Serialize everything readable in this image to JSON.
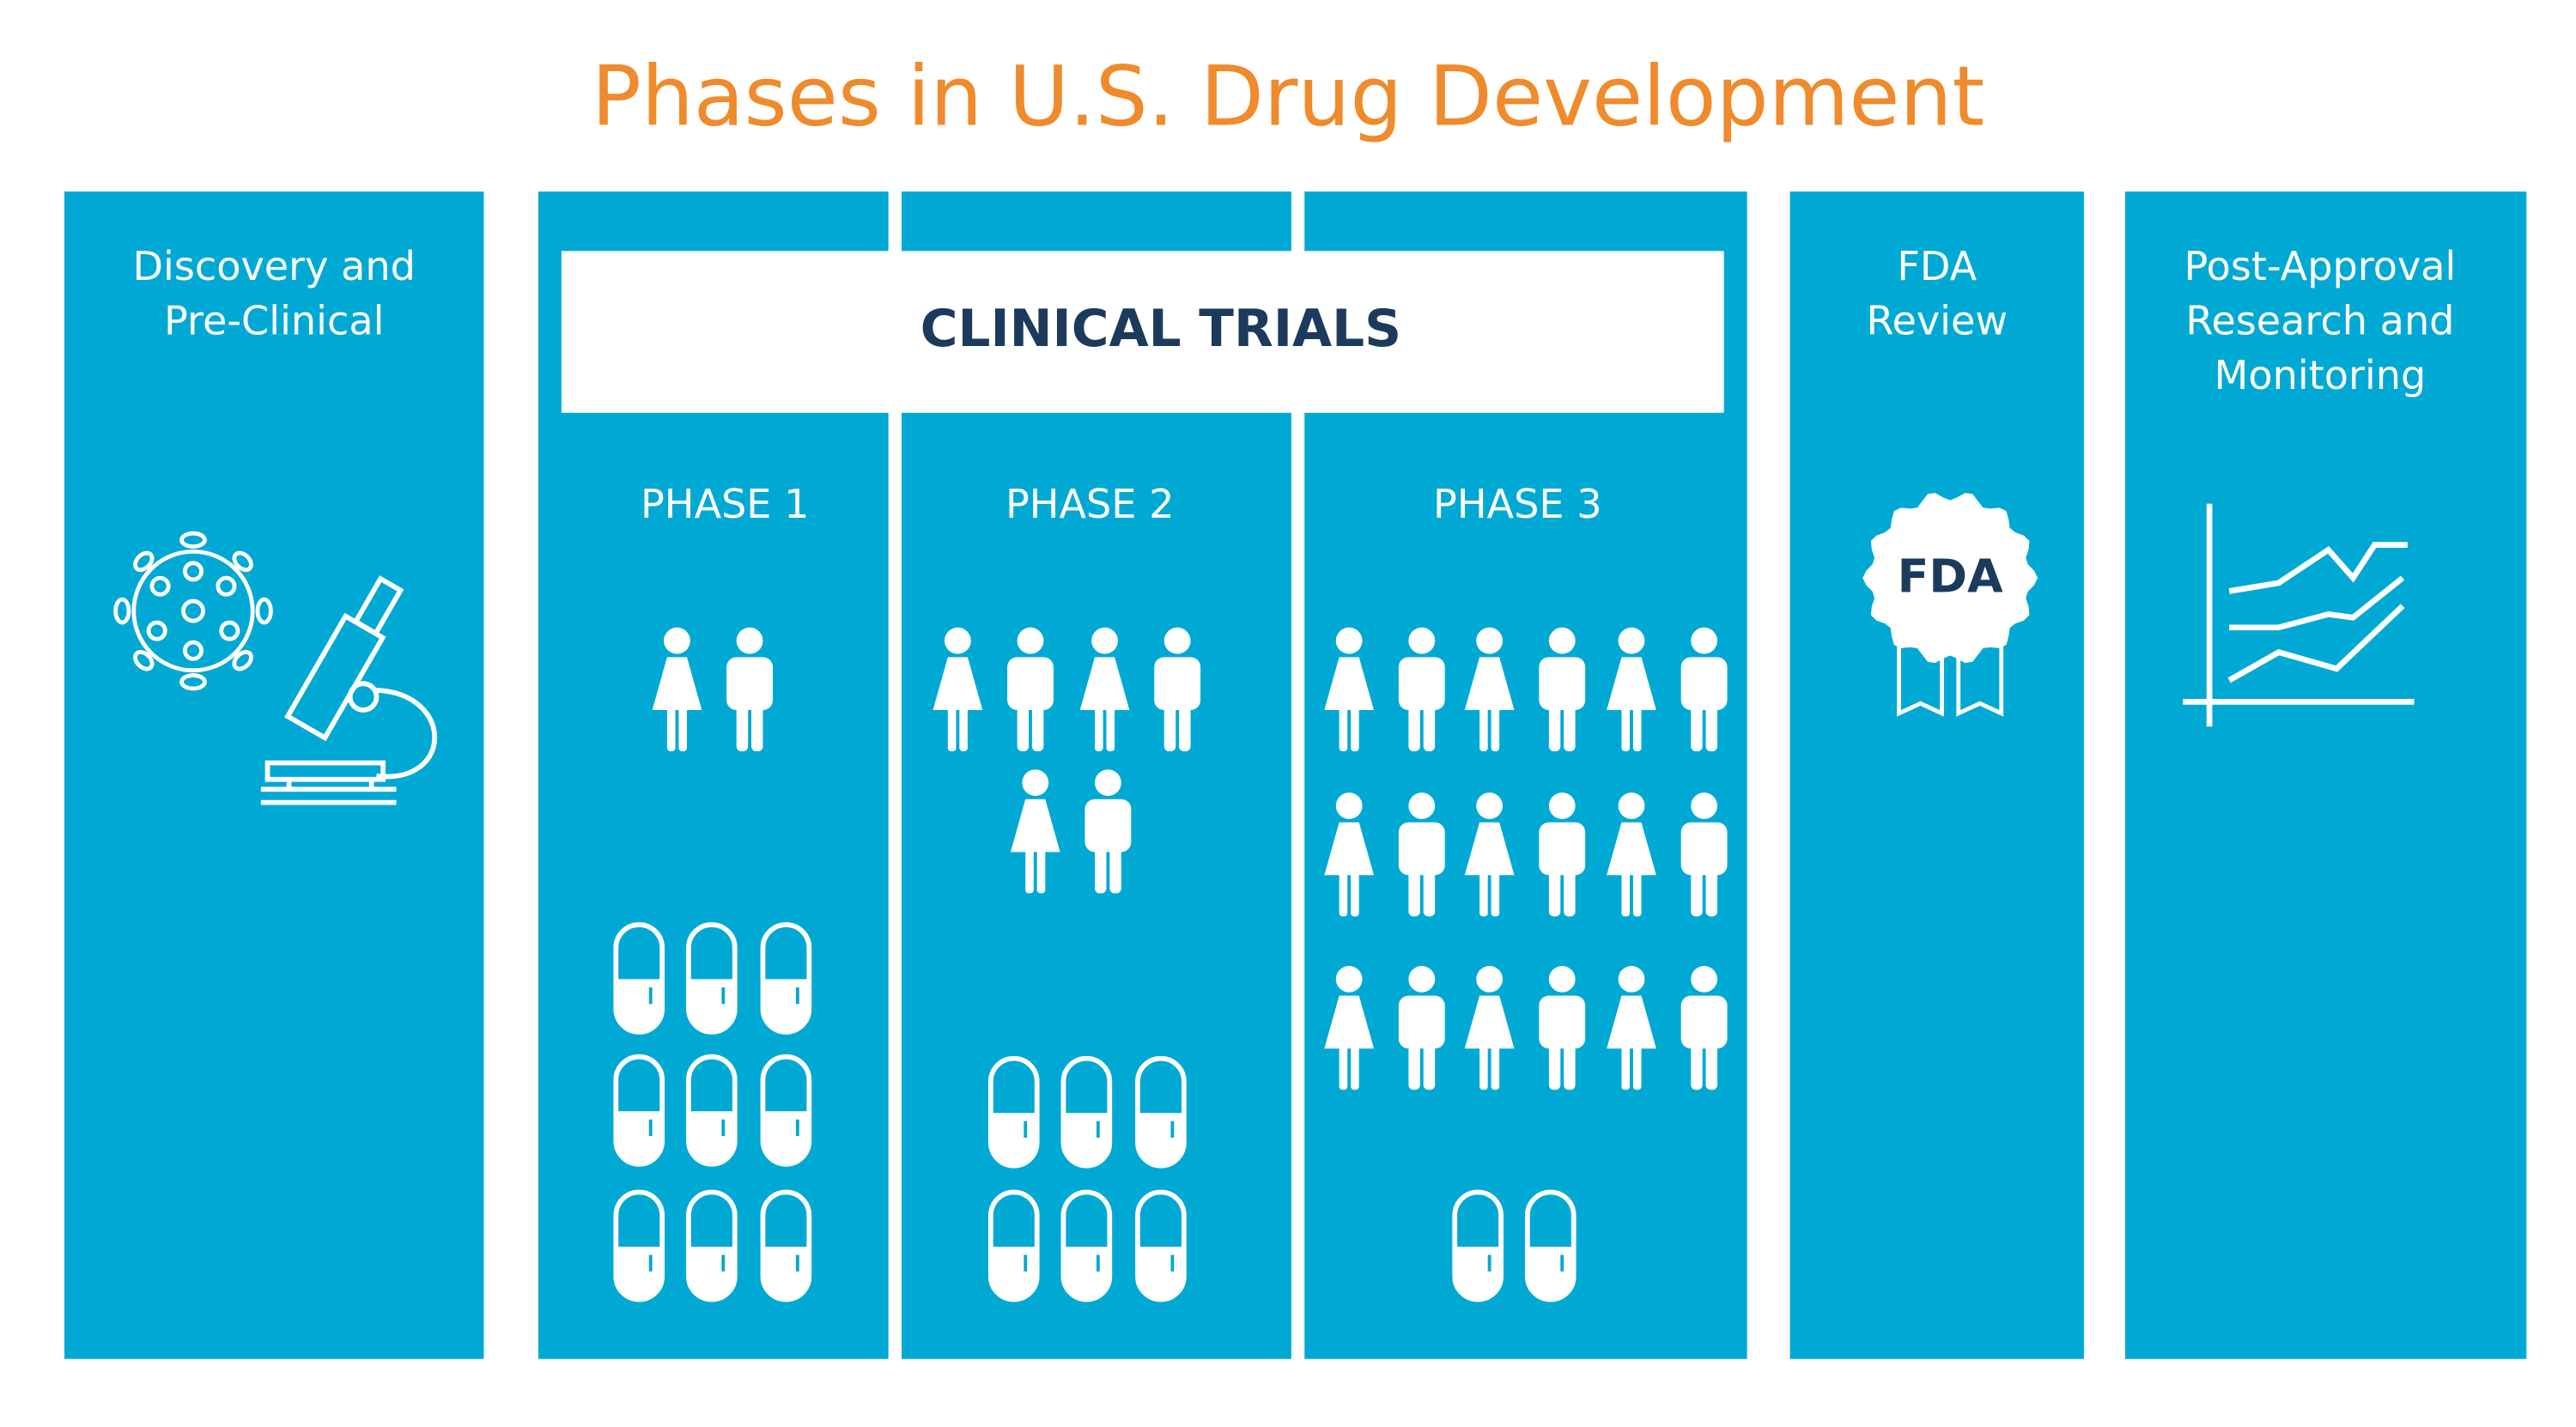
{
  "title": "Phases in U.S. Drug Development",
  "discovery": {
    "label": [
      "Discovery and",
      "Pre-Clinical"
    ]
  },
  "clinical": {
    "label": "CLINICAL TRIALS",
    "phases": [
      "PHASE 1",
      "PHASE 2",
      "PHASE 3"
    ]
  },
  "fda": {
    "label": [
      "FDA",
      "Review"
    ],
    "badge": "FDA"
  },
  "post": {
    "label": [
      "Post-Approval",
      "Research and",
      "Monitoring"
    ]
  }
}
